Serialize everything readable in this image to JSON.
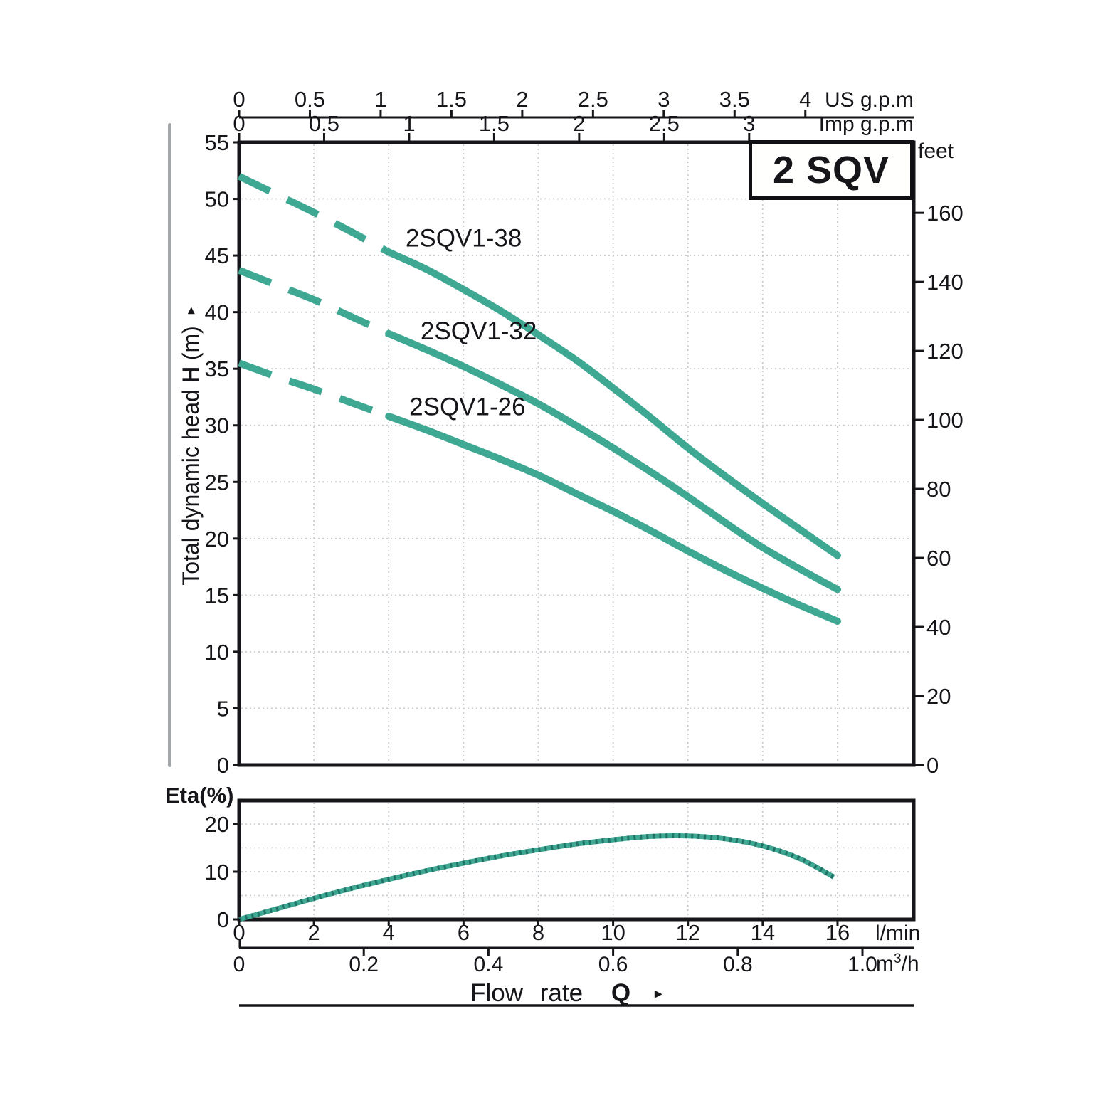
{
  "colors": {
    "curve": "#3fa893",
    "curve_dark": "#1f7468",
    "axis": "#16161a",
    "grid": "#c3c9cd",
    "rule": "#a3a7aa"
  },
  "labels": {
    "head_prefix": "Total dynamic head",
    "head_bold": "H",
    "head_suffix": "(m)",
    "arrow": "▸",
    "flow_prefix": "Flow rate",
    "flow_q": "Q",
    "m3h_base": "m",
    "m3h_sup": "3",
    "m3h_tail": "/h"
  },
  "chart_data": [
    {
      "id": "head-flow-curves",
      "type": "line",
      "title": "2 SQV",
      "x_axis": {
        "unit": "l/min",
        "min": 0,
        "max": 18,
        "grid_step": 2
      },
      "y_axis_m": {
        "label": "Total dynamic head H (m)",
        "min": 0,
        "max": 55,
        "grid_step": 5,
        "tick_values": [
          55,
          50,
          45,
          40,
          35,
          30,
          25,
          20,
          15,
          10,
          5,
          0
        ]
      },
      "y_axis_feet": {
        "label": "feet",
        "m_per_foot": 0.3048,
        "tick_values": [
          160,
          140,
          120,
          100,
          80,
          60,
          40,
          20,
          0
        ]
      },
      "top_axes": [
        {
          "name": "us-gpm",
          "label": "US g.p.m",
          "lmin_per_unit": 3.785,
          "tick_values": [
            0,
            0.5,
            1,
            1.5,
            2,
            2.5,
            3,
            3.5,
            4
          ],
          "tick_labels": [
            "0",
            "0.5",
            "1",
            "1.5",
            "2",
            "2.5",
            "3",
            "3.5",
            "4"
          ]
        },
        {
          "name": "imp-gpm",
          "label": "Imp g.p.m",
          "lmin_per_unit": 4.546,
          "tick_values": [
            0,
            0.5,
            1,
            1.5,
            2,
            2.5,
            3
          ],
          "tick_labels": [
            "0",
            "0.5",
            "1",
            "1.5",
            "2",
            "2.5",
            "3"
          ]
        }
      ],
      "series": [
        {
          "name": "2SQV1-38",
          "dashed_until_lmin": 4,
          "label_pos": [
            4.45,
            45.8
          ],
          "points": [
            [
              0,
              52
            ],
            [
              1,
              50.4
            ],
            [
              2,
              48.8
            ],
            [
              3,
              47.1
            ],
            [
              4,
              45.3
            ],
            [
              5,
              43.8
            ],
            [
              6,
              42
            ],
            [
              7,
              40.1
            ],
            [
              8,
              38
            ],
            [
              9,
              35.8
            ],
            [
              10,
              33.3
            ],
            [
              11,
              30.7
            ],
            [
              12,
              28
            ],
            [
              13,
              25.5
            ],
            [
              14,
              23.1
            ],
            [
              15,
              20.8
            ],
            [
              16,
              18.5
            ]
          ]
        },
        {
          "name": "2SQV1-32",
          "dashed_until_lmin": 4,
          "label_pos": [
            4.85,
            37.6
          ],
          "points": [
            [
              0,
              43.7
            ],
            [
              1,
              42.4
            ],
            [
              2,
              41.1
            ],
            [
              3,
              39.6
            ],
            [
              4,
              38.1
            ],
            [
              5,
              36.7
            ],
            [
              6,
              35.2
            ],
            [
              7,
              33.6
            ],
            [
              8,
              31.9
            ],
            [
              9,
              30
            ],
            [
              10,
              28
            ],
            [
              11,
              25.9
            ],
            [
              12,
              23.7
            ],
            [
              13,
              21.4
            ],
            [
              14,
              19.2
            ],
            [
              15,
              17.3
            ],
            [
              16,
              15.5
            ]
          ]
        },
        {
          "name": "2SQV1-26",
          "dashed_until_lmin": 4,
          "label_pos": [
            4.55,
            30.9
          ],
          "points": [
            [
              0,
              35.5
            ],
            [
              1,
              34.3
            ],
            [
              2,
              33.2
            ],
            [
              3,
              32
            ],
            [
              4,
              30.8
            ],
            [
              5,
              29.6
            ],
            [
              6,
              28.3
            ],
            [
              7,
              27
            ],
            [
              8,
              25.6
            ],
            [
              9,
              24
            ],
            [
              10,
              22.4
            ],
            [
              11,
              20.7
            ],
            [
              12,
              18.9
            ],
            [
              13,
              17.2
            ],
            [
              14,
              15.6
            ],
            [
              15,
              14.1
            ],
            [
              16,
              12.7
            ]
          ]
        }
      ]
    },
    {
      "id": "efficiency-curve",
      "type": "line",
      "ylabel": "Eta(%)",
      "y_axis_pct": {
        "min": 0,
        "max": 25,
        "grid_step": 5,
        "tick_values": [
          20,
          10,
          0
        ]
      },
      "x_axis_lmin": {
        "label": "l/min",
        "tick_values": [
          0,
          2,
          4,
          6,
          8,
          10,
          12,
          14,
          16
        ],
        "grid_step": 2
      },
      "x_axis_m3h": {
        "label": "m³/h",
        "lmin_per_unit": 16.667,
        "tick_values": [
          0,
          0.2,
          0.4,
          0.6,
          0.8,
          1
        ],
        "tick_labels": [
          "0",
          "0.2",
          "0.4",
          "0.6",
          "0.8",
          "1.0"
        ]
      },
      "series": [
        {
          "name": "Eta",
          "points": [
            [
              0,
              0
            ],
            [
              1,
              2.2
            ],
            [
              2,
              4.4
            ],
            [
              3,
              6.5
            ],
            [
              4,
              8.4
            ],
            [
              5,
              10.2
            ],
            [
              6,
              11.8
            ],
            [
              7,
              13.3
            ],
            [
              8,
              14.6
            ],
            [
              9,
              15.8
            ],
            [
              10,
              16.7
            ],
            [
              11,
              17.4
            ],
            [
              12,
              17.5
            ],
            [
              13,
              16.9
            ],
            [
              14,
              15.4
            ],
            [
              15,
              12.7
            ],
            [
              15.9,
              8.9
            ]
          ]
        }
      ]
    }
  ]
}
